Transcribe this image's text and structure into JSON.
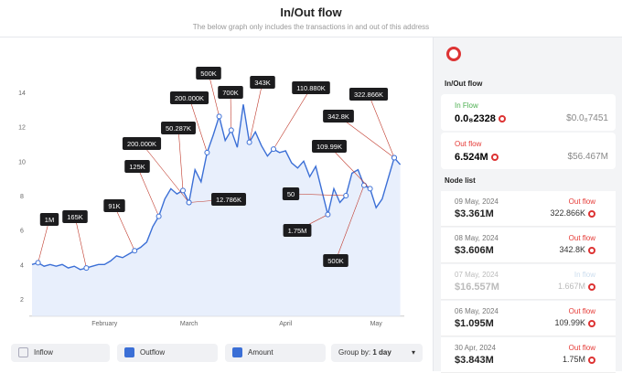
{
  "header": {
    "title": "In/Out flow",
    "subtitle": "The below graph only includes the transactions in and out of this address"
  },
  "chart_data": {
    "type": "line",
    "categories": [
      null,
      null,
      null,
      null,
      null,
      null,
      null,
      null,
      null,
      null,
      null,
      null,
      "February",
      null,
      null,
      null,
      null,
      null,
      null,
      null,
      null,
      null,
      null,
      null,
      null,
      null,
      "March",
      null,
      null,
      null,
      null,
      null,
      null,
      null,
      null,
      null,
      null,
      null,
      null,
      null,
      null,
      null,
      "April",
      null,
      null,
      null,
      null,
      null,
      null,
      null,
      null,
      null,
      null,
      null,
      null,
      null,
      null,
      "May",
      null,
      null,
      null,
      null
    ],
    "values": [
      4.0,
      4.1,
      3.9,
      4.0,
      3.9,
      4.0,
      3.8,
      3.9,
      3.7,
      3.8,
      3.9,
      4.0,
      4.0,
      4.2,
      4.5,
      4.4,
      4.6,
      4.8,
      5.0,
      5.3,
      6.2,
      6.8,
      7.8,
      8.4,
      8.1,
      8.3,
      7.6,
      9.5,
      8.8,
      10.5,
      11.5,
      12.6,
      11.2,
      11.8,
      10.8,
      13.3,
      11.1,
      11.7,
      10.9,
      10.3,
      10.7,
      10.5,
      10.6,
      9.9,
      9.6,
      10.0,
      9.1,
      9.7,
      8.3,
      6.9,
      8.4,
      7.6,
      8.0,
      9.3,
      9.5,
      8.6,
      8.4,
      7.3,
      7.8,
      9.0,
      10.2,
      9.8
    ],
    "color": "#3b6fd6",
    "ylim": [
      1,
      16
    ],
    "yticks": [
      2,
      4,
      6,
      8,
      10,
      12,
      14
    ],
    "grid": false,
    "annotations": [
      "1M",
      "165K",
      "91K",
      "125K",
      "200.000K",
      "50.287K",
      "200.000K",
      "500K",
      "700K",
      "12.786K",
      "343K",
      "110.880K",
      "50",
      "1.75M",
      "500K",
      "109.99K",
      "342.8K",
      "322.866K"
    ]
  },
  "controls": {
    "inflow": "Inflow",
    "outflow": "Outflow",
    "amount": "Amount",
    "group_label": "Group by:",
    "group_value": "1 day"
  },
  "sidebar": {
    "section_title": "In/Out flow",
    "inflow": {
      "label": "In Flow",
      "amount": "0.0₈2328",
      "usd": "$0.0₈7451"
    },
    "outflow": {
      "label": "Out flow",
      "amount": "6.524M",
      "usd": "$56.467M"
    },
    "node_title": "Node list",
    "nodes": [
      {
        "date": "09 May, 2024",
        "usd": "$3.361M",
        "type": "Out flow",
        "amount": "322.866K"
      },
      {
        "date": "08 May, 2024",
        "usd": "$3.606M",
        "type": "Out flow",
        "amount": "342.8K"
      },
      {
        "date": "07 May, 2024",
        "usd": "$16.557M",
        "type": "In flow",
        "amount": "1.667M"
      },
      {
        "date": "06 May, 2024",
        "usd": "$1.095M",
        "type": "Out flow",
        "amount": "109.99K"
      },
      {
        "date": "30 Apr, 2024",
        "usd": "$3.843M",
        "type": "Out flow",
        "amount": "1.75M"
      }
    ]
  }
}
